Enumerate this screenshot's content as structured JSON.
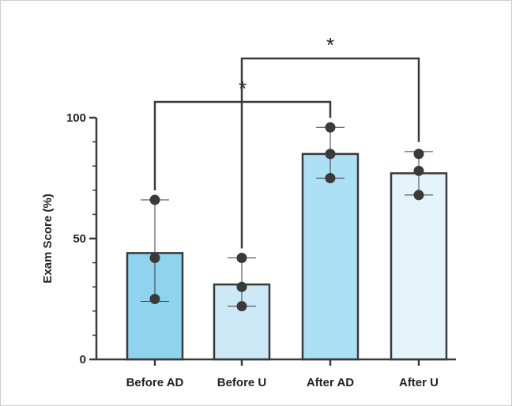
{
  "chart_data": {
    "type": "bar",
    "categories": [
      "Before AD",
      "Before U",
      "After AD",
      "After U"
    ],
    "values": [
      44,
      31,
      85,
      77
    ],
    "error_bars": [
      {
        "lower": 24,
        "upper": 66
      },
      {
        "lower": 22,
        "upper": 42
      },
      {
        "lower": 75,
        "upper": 96
      },
      {
        "lower": 68,
        "upper": 86
      }
    ],
    "points": [
      [
        66,
        42,
        25
      ],
      [
        42,
        30,
        22
      ],
      [
        96,
        85,
        75
      ],
      [
        85,
        78,
        68
      ]
    ],
    "bar_colors": [
      "#8fd3ef",
      "#cde9f7",
      "#abe0f5",
      "#e5f4fb"
    ],
    "point_color": "#3a3a3a",
    "ylabel": "Exam Score (%)",
    "xlabel": "",
    "ylim": [
      0,
      100
    ],
    "yticks": [
      0,
      50,
      100
    ],
    "y_tick_labels": [
      "0",
      "50",
      "100"
    ],
    "significance": [
      {
        "from": "Before AD",
        "to": "After AD",
        "label": "*"
      },
      {
        "from": "Before U",
        "to": "After U",
        "label": "*"
      }
    ],
    "grid": false
  }
}
